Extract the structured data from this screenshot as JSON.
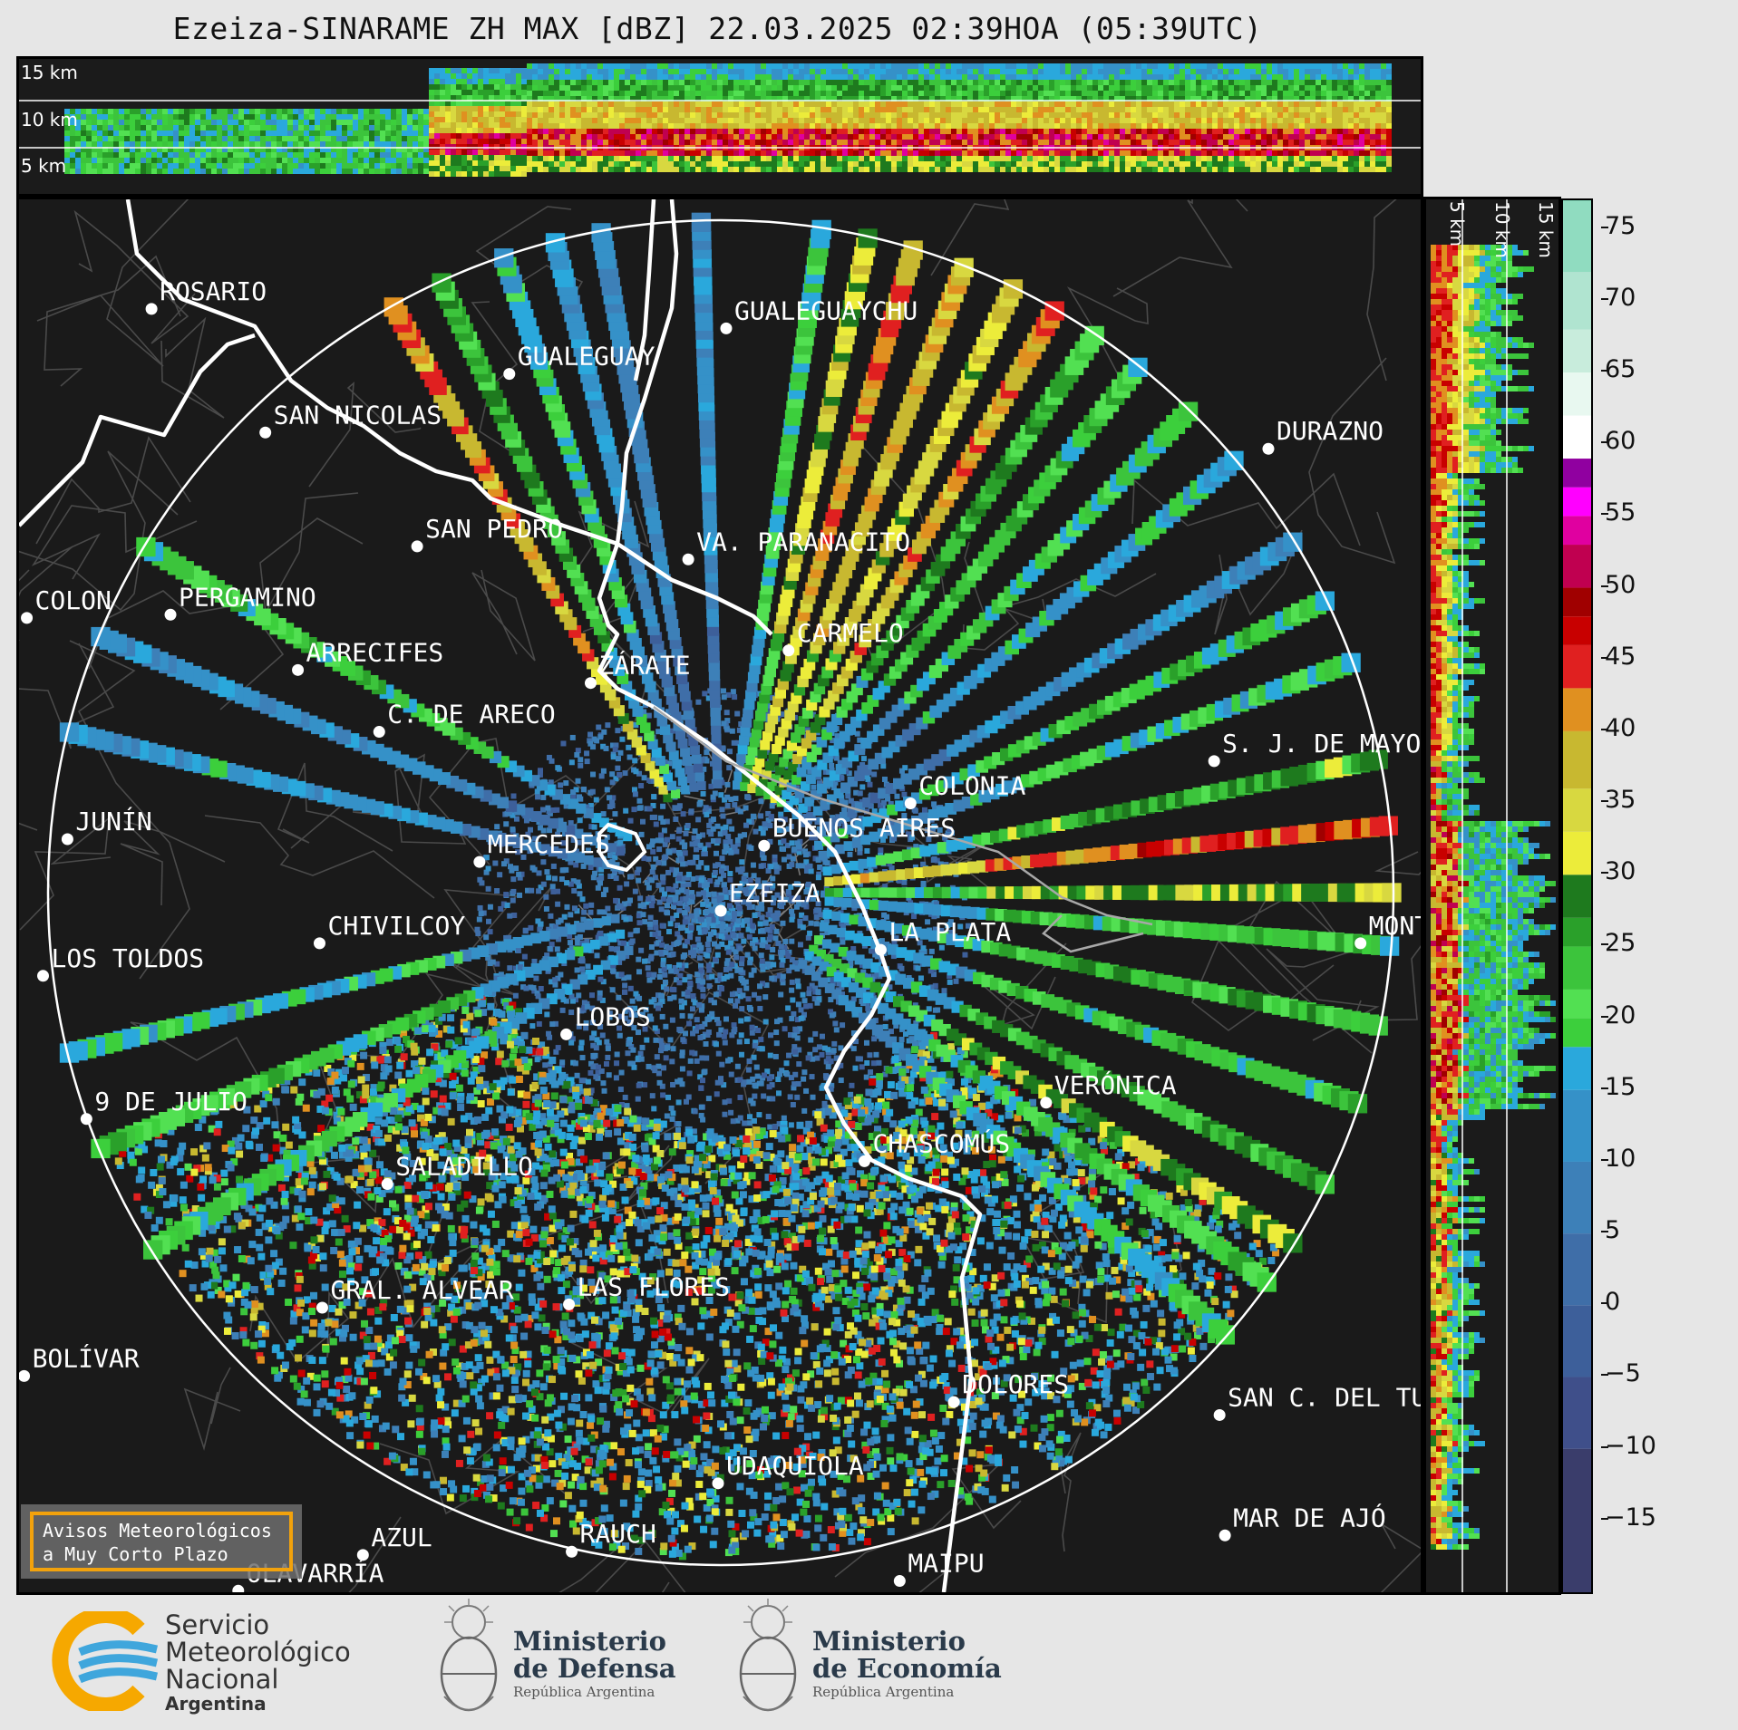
{
  "title": "Ezeiza-SINARAME ZH MAX [dBZ] 22.03.2025 02:39HOA (05:39UTC)",
  "height_labels": [
    "15 km",
    "10 km",
    "5 km"
  ],
  "colorbar": {
    "ticks": [
      "75",
      "70",
      "65",
      "60",
      "55",
      "50",
      "45",
      "40",
      "35",
      "30",
      "25",
      "20",
      "15",
      "10",
      "5",
      "0",
      "−5",
      "−10",
      "−15"
    ],
    "min": -20,
    "max": 77
  },
  "cities": [
    {
      "label": "ROSARIO",
      "lon": -60.64,
      "lat": -32.95
    },
    {
      "label": "GUALEGUAYCHU",
      "lon": -58.52,
      "lat": -33.01
    },
    {
      "label": "GUALEGUAY",
      "lon": -59.32,
      "lat": -33.15
    },
    {
      "label": "SAN NICOLAS",
      "lon": -60.22,
      "lat": -33.33
    },
    {
      "label": "DURAZNO",
      "lon": -56.52,
      "lat": -33.38
    },
    {
      "label": "SAN PEDRO",
      "lon": -59.66,
      "lat": -33.68
    },
    {
      "label": "VA. PARANACITO",
      "lon": -58.66,
      "lat": -33.72
    },
    {
      "label": "COLON",
      "lon": -61.1,
      "lat": -33.9
    },
    {
      "label": "PERGAMINO",
      "lon": -60.57,
      "lat": -33.89
    },
    {
      "label": "CARMELO",
      "lon": -58.29,
      "lat": -34.0
    },
    {
      "label": "ARRECIFES",
      "lon": -60.1,
      "lat": -34.06
    },
    {
      "label": "ZÁRATE",
      "lon": -59.02,
      "lat": -34.1
    },
    {
      "label": "S. J. DE MAYO",
      "lon": -56.72,
      "lat": -34.34
    },
    {
      "label": "C. DE ARECO",
      "lon": -59.8,
      "lat": -34.25
    },
    {
      "label": "COLONIA",
      "lon": -57.84,
      "lat": -34.47
    },
    {
      "label": "JUNÍN",
      "lon": -60.95,
      "lat": -34.58
    },
    {
      "label": "BUENOS AIRES",
      "lon": -58.38,
      "lat": -34.6
    },
    {
      "label": "MERCEDES",
      "lon": -59.43,
      "lat": -34.65
    },
    {
      "label": "MONTEVIDEO",
      "lon": -56.18,
      "lat": -34.9
    },
    {
      "label": "EZEIZA",
      "lon": -58.54,
      "lat": -34.8
    },
    {
      "label": "LA PLATA",
      "lon": -57.95,
      "lat": -34.92
    },
    {
      "label": "CHIVILCOY",
      "lon": -60.02,
      "lat": -34.9
    },
    {
      "label": "LOS TOLDOS",
      "lon": -61.04,
      "lat": -35.0
    },
    {
      "label": "LOBOS",
      "lon": -59.11,
      "lat": -35.18
    },
    {
      "label": "VERÓNICA",
      "lon": -57.34,
      "lat": -35.39
    },
    {
      "label": "9 DE JULIO",
      "lon": -60.88,
      "lat": -35.44
    },
    {
      "label": "CHASCOMÚS",
      "lon": -58.01,
      "lat": -35.57
    },
    {
      "label": "SALADILLO",
      "lon": -59.77,
      "lat": -35.64
    },
    {
      "label": "GRAL. ALVEAR",
      "lon": -60.01,
      "lat": -36.02
    },
    {
      "label": "LAS FLORES",
      "lon": -59.1,
      "lat": -36.01
    },
    {
      "label": "BOLÍVAR",
      "lon": -61.11,
      "lat": -36.23
    },
    {
      "label": "DOLORES",
      "lon": -57.68,
      "lat": -36.31
    },
    {
      "label": "SAN C. DEL TUYÚ",
      "lon": -56.7,
      "lat": -36.35
    },
    {
      "label": "UDAQUIOLA",
      "lon": -58.55,
      "lat": -36.56
    },
    {
      "label": "MAR DE AJÓ",
      "lon": -56.68,
      "lat": -36.72
    },
    {
      "label": "AZUL",
      "lon": -59.86,
      "lat": -36.78
    },
    {
      "label": "RAUCH",
      "lon": -59.09,
      "lat": -36.77
    },
    {
      "label": "MAIPU",
      "lon": -57.88,
      "lat": -36.86
    },
    {
      "label": "OLAVARRÍA",
      "lon": -60.32,
      "lat": -36.89
    }
  ],
  "warning_box": {
    "line1": "Avisos Meteorológicos",
    "line2": "a Muy Corto Plazo"
  },
  "logos": {
    "smn": {
      "line1": "Servicio",
      "line2": "Meteorológico",
      "line3": "Nacional",
      "line4": "Argentina"
    },
    "defensa": {
      "line1": "Ministerio",
      "line2": "de Defensa",
      "line3": "República Argentina"
    },
    "economia": {
      "line1": "Ministerio",
      "line2": "de Economía",
      "line3": "República Argentina"
    }
  }
}
